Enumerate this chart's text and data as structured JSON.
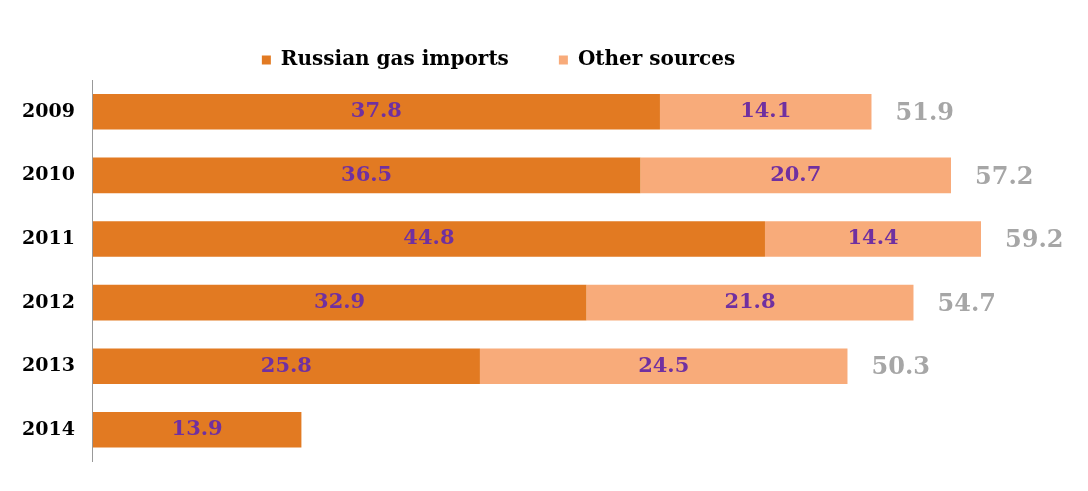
{
  "chart_data": {
    "type": "bar",
    "orientation": "horizontal",
    "stacked": true,
    "categories": [
      "2009",
      "2010",
      "2011",
      "2012",
      "2013",
      "2014"
    ],
    "series": [
      {
        "name": "Russian gas imports",
        "color": "#e27a22",
        "values": [
          37.8,
          36.5,
          44.8,
          32.9,
          25.8,
          13.9
        ]
      },
      {
        "name": "Other sources",
        "color": "#f8ab7a",
        "values": [
          14.1,
          20.7,
          14.4,
          21.8,
          24.5,
          null
        ]
      }
    ],
    "tick_labels": "y",
    "legend": "top",
    "data_labels": true,
    "totals": [
      "51.9",
      "57.2",
      "59.2",
      "54.7",
      "50.3",
      null
    ]
  }
}
